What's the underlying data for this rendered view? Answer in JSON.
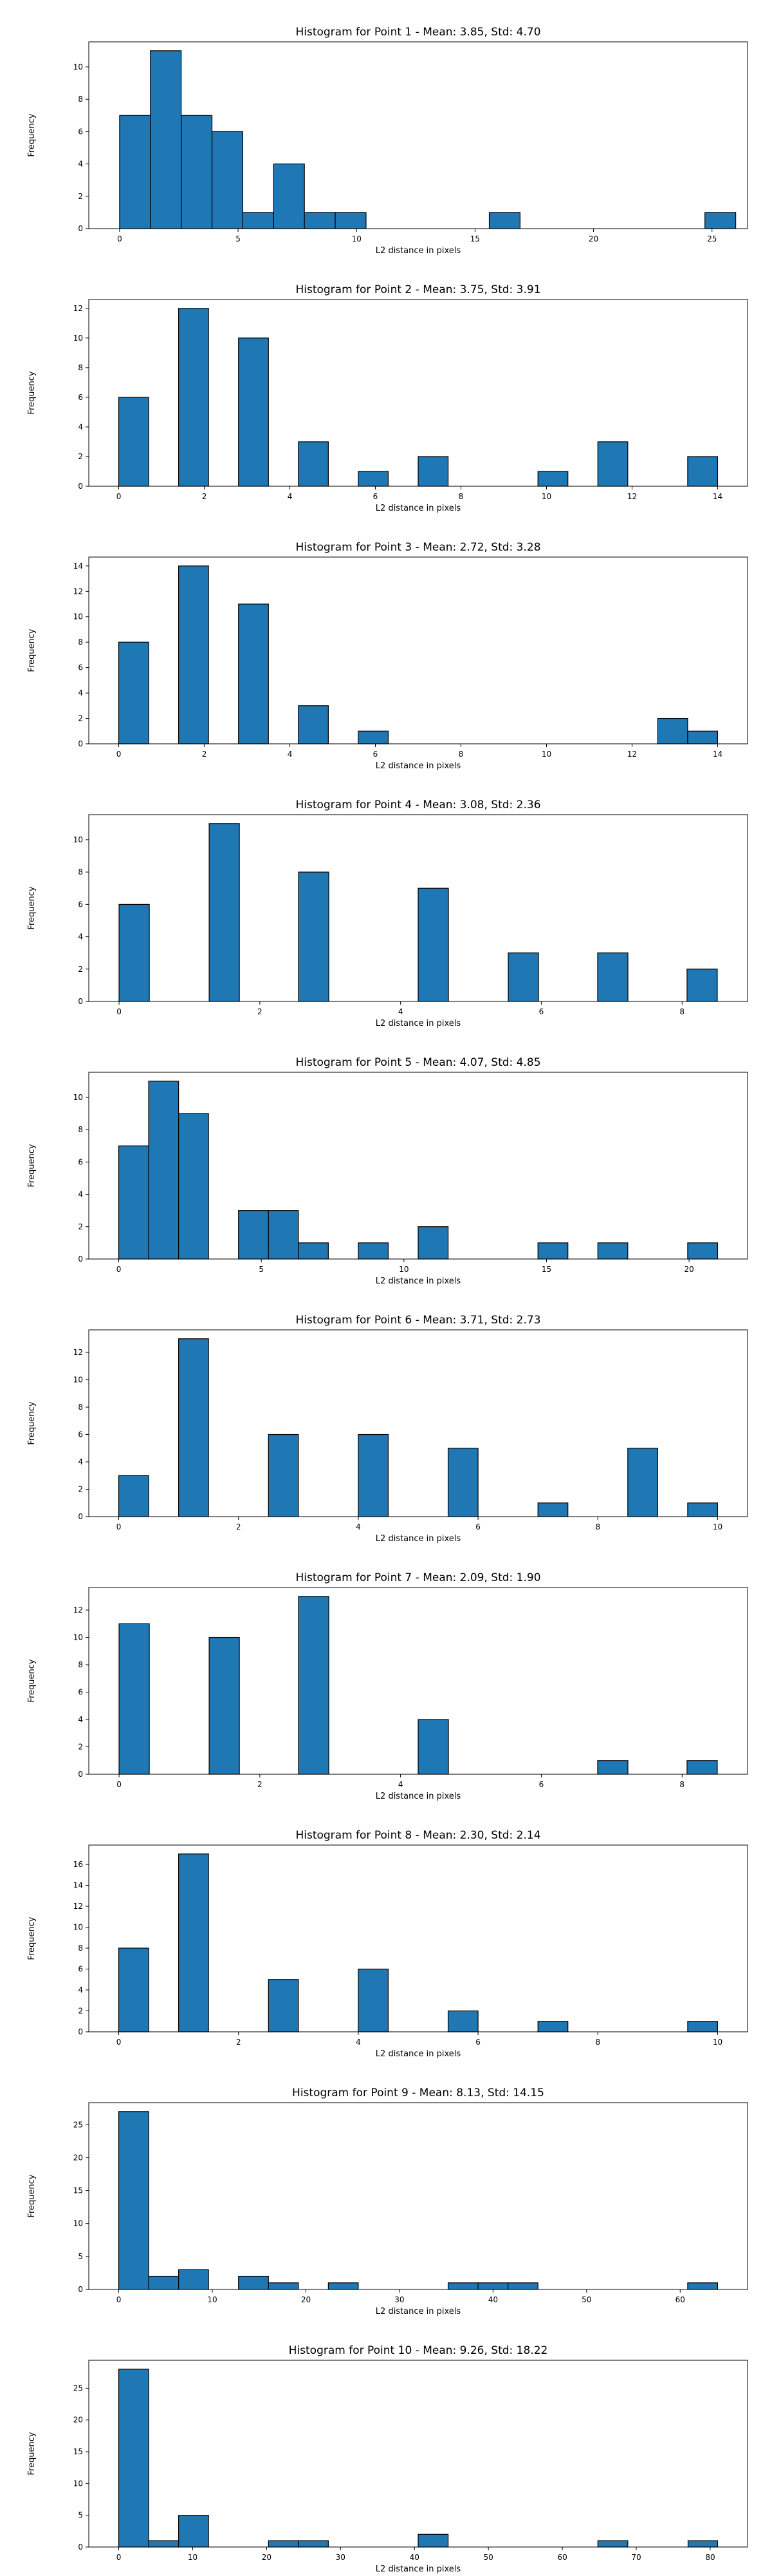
{
  "figure": {
    "bar_color": "#1f77b4",
    "edge_color": "#000000",
    "background": "#ffffff"
  },
  "chart_data": [
    {
      "type": "bar",
      "title": "Histogram for Point 1 - Mean: 3.85, Std: 4.70",
      "xlabel": "L2 distance in pixels",
      "ylabel": "Frequency",
      "xlim": [
        -1.3,
        26.5
      ],
      "ylim": [
        0,
        11.55
      ],
      "xticks": [
        0,
        5,
        10,
        15,
        20,
        25
      ],
      "yticks": [
        0,
        2,
        4,
        6,
        8,
        10
      ],
      "bins": [
        {
          "x0": 0.0,
          "x1": 1.3,
          "count": 7
        },
        {
          "x0": 1.3,
          "x1": 2.6,
          "count": 11
        },
        {
          "x0": 2.6,
          "x1": 3.9,
          "count": 7
        },
        {
          "x0": 3.9,
          "x1": 5.2,
          "count": 6
        },
        {
          "x0": 5.2,
          "x1": 6.5,
          "count": 1
        },
        {
          "x0": 6.5,
          "x1": 7.8,
          "count": 4
        },
        {
          "x0": 7.8,
          "x1": 9.1,
          "count": 1
        },
        {
          "x0": 9.1,
          "x1": 10.4,
          "count": 1
        },
        {
          "x0": 15.6,
          "x1": 16.9,
          "count": 1
        },
        {
          "x0": 24.7,
          "x1": 26.0,
          "count": 1
        }
      ]
    },
    {
      "type": "bar",
      "title": "Histogram for Point 2 - Mean: 3.75, Std: 3.91",
      "xlabel": "L2 distance in pixels",
      "ylabel": "Frequency",
      "xlim": [
        -0.7,
        14.7
      ],
      "ylim": [
        0,
        12.6
      ],
      "xticks": [
        0,
        2,
        4,
        6,
        8,
        10,
        12,
        14
      ],
      "yticks": [
        0,
        2,
        4,
        6,
        8,
        10,
        12
      ],
      "bins": [
        {
          "x0": 0.0,
          "x1": 0.7,
          "count": 6
        },
        {
          "x0": 1.4,
          "x1": 2.1,
          "count": 12
        },
        {
          "x0": 2.8,
          "x1": 3.5,
          "count": 10
        },
        {
          "x0": 4.2,
          "x1": 4.9,
          "count": 3
        },
        {
          "x0": 5.6,
          "x1": 6.3,
          "count": 1
        },
        {
          "x0": 7.0,
          "x1": 7.7,
          "count": 2
        },
        {
          "x0": 9.8,
          "x1": 10.5,
          "count": 1
        },
        {
          "x0": 11.2,
          "x1": 11.9,
          "count": 3
        },
        {
          "x0": 13.3,
          "x1": 14.0,
          "count": 2
        }
      ]
    },
    {
      "type": "bar",
      "title": "Histogram for Point 3 - Mean: 2.72, Std: 3.28",
      "xlabel": "L2 distance in pixels",
      "ylabel": "Frequency",
      "xlim": [
        -0.7,
        14.7
      ],
      "ylim": [
        0,
        14.7
      ],
      "xticks": [
        0,
        2,
        4,
        6,
        8,
        10,
        12,
        14
      ],
      "yticks": [
        0,
        2,
        4,
        6,
        8,
        10,
        12,
        14
      ],
      "bins": [
        {
          "x0": 0.0,
          "x1": 0.7,
          "count": 8
        },
        {
          "x0": 1.4,
          "x1": 2.1,
          "count": 14
        },
        {
          "x0": 2.8,
          "x1": 3.5,
          "count": 11
        },
        {
          "x0": 4.2,
          "x1": 4.9,
          "count": 3
        },
        {
          "x0": 5.6,
          "x1": 6.3,
          "count": 1
        },
        {
          "x0": 12.6,
          "x1": 13.3,
          "count": 2
        },
        {
          "x0": 13.3,
          "x1": 14.0,
          "count": 1
        }
      ]
    },
    {
      "type": "bar",
      "title": "Histogram for Point 4 - Mean: 3.08, Std: 2.36",
      "xlabel": "L2 distance in pixels",
      "ylabel": "Frequency",
      "xlim": [
        -0.43,
        8.93
      ],
      "ylim": [
        0,
        11.55
      ],
      "xticks": [
        0,
        2,
        4,
        6,
        8
      ],
      "yticks": [
        0,
        2,
        4,
        6,
        8,
        10
      ],
      "bins": [
        {
          "x0": 0.0,
          "x1": 0.43,
          "count": 6
        },
        {
          "x0": 1.28,
          "x1": 1.71,
          "count": 11
        },
        {
          "x0": 2.55,
          "x1": 2.98,
          "count": 8
        },
        {
          "x0": 4.25,
          "x1": 4.68,
          "count": 7
        },
        {
          "x0": 5.53,
          "x1": 5.96,
          "count": 3
        },
        {
          "x0": 6.8,
          "x1": 7.23,
          "count": 3
        },
        {
          "x0": 8.07,
          "x1": 8.5,
          "count": 2
        }
      ]
    },
    {
      "type": "bar",
      "title": "Histogram for Point 5 - Mean: 4.07, Std: 4.85",
      "xlabel": "L2 distance in pixels",
      "ylabel": "Frequency",
      "xlim": [
        -1.05,
        22.05
      ],
      "ylim": [
        0,
        11.55
      ],
      "xticks": [
        0,
        5,
        10,
        15,
        20
      ],
      "yticks": [
        0,
        2,
        4,
        6,
        8,
        10
      ],
      "bins": [
        {
          "x0": 0.0,
          "x1": 1.05,
          "count": 7
        },
        {
          "x0": 1.05,
          "x1": 2.1,
          "count": 11
        },
        {
          "x0": 2.1,
          "x1": 3.15,
          "count": 9
        },
        {
          "x0": 4.2,
          "x1": 5.25,
          "count": 3
        },
        {
          "x0": 5.25,
          "x1": 6.3,
          "count": 3
        },
        {
          "x0": 6.3,
          "x1": 7.35,
          "count": 1
        },
        {
          "x0": 8.4,
          "x1": 9.45,
          "count": 1
        },
        {
          "x0": 10.5,
          "x1": 11.55,
          "count": 2
        },
        {
          "x0": 14.7,
          "x1": 15.75,
          "count": 1
        },
        {
          "x0": 16.8,
          "x1": 17.85,
          "count": 1
        },
        {
          "x0": 19.95,
          "x1": 21.0,
          "count": 1
        }
      ]
    },
    {
      "type": "bar",
      "title": "Histogram for Point 6 - Mean: 3.71, Std: 2.73",
      "xlabel": "L2 distance in pixels",
      "ylabel": "Frequency",
      "xlim": [
        -0.5,
        10.5
      ],
      "ylim": [
        0,
        13.65
      ],
      "xticks": [
        0,
        2,
        4,
        6,
        8,
        10
      ],
      "yticks": [
        0,
        2,
        4,
        6,
        8,
        10,
        12
      ],
      "bins": [
        {
          "x0": 0.0,
          "x1": 0.5,
          "count": 3
        },
        {
          "x0": 1.0,
          "x1": 1.5,
          "count": 13
        },
        {
          "x0": 2.5,
          "x1": 3.0,
          "count": 6
        },
        {
          "x0": 4.0,
          "x1": 4.5,
          "count": 6
        },
        {
          "x0": 5.5,
          "x1": 6.0,
          "count": 5
        },
        {
          "x0": 7.0,
          "x1": 7.5,
          "count": 1
        },
        {
          "x0": 8.5,
          "x1": 9.0,
          "count": 5
        },
        {
          "x0": 9.5,
          "x1": 10.0,
          "count": 1
        }
      ]
    },
    {
      "type": "bar",
      "title": "Histogram for Point 7 - Mean: 2.09, Std: 1.90",
      "xlabel": "L2 distance in pixels",
      "ylabel": "Frequency",
      "xlim": [
        -0.43,
        8.93
      ],
      "ylim": [
        0,
        13.65
      ],
      "xticks": [
        0,
        2,
        4,
        6,
        8
      ],
      "yticks": [
        0,
        2,
        4,
        6,
        8,
        10,
        12
      ],
      "bins": [
        {
          "x0": 0.0,
          "x1": 0.43,
          "count": 11
        },
        {
          "x0": 1.28,
          "x1": 1.71,
          "count": 10
        },
        {
          "x0": 2.55,
          "x1": 2.98,
          "count": 13
        },
        {
          "x0": 4.25,
          "x1": 4.68,
          "count": 4
        },
        {
          "x0": 6.8,
          "x1": 7.23,
          "count": 1
        },
        {
          "x0": 8.07,
          "x1": 8.5,
          "count": 1
        }
      ]
    },
    {
      "type": "bar",
      "title": "Histogram for Point 8 - Mean: 2.30, Std: 2.14",
      "xlabel": "L2 distance in pixels",
      "ylabel": "Frequency",
      "xlim": [
        -0.5,
        10.5
      ],
      "ylim": [
        0,
        17.85
      ],
      "xticks": [
        0,
        2,
        4,
        6,
        8,
        10
      ],
      "yticks": [
        0,
        2,
        4,
        6,
        8,
        10,
        12,
        14,
        16
      ],
      "bins": [
        {
          "x0": 0.0,
          "x1": 0.5,
          "count": 8
        },
        {
          "x0": 1.0,
          "x1": 1.5,
          "count": 17
        },
        {
          "x0": 2.5,
          "x1": 3.0,
          "count": 5
        },
        {
          "x0": 4.0,
          "x1": 4.5,
          "count": 6
        },
        {
          "x0": 5.5,
          "x1": 6.0,
          "count": 2
        },
        {
          "x0": 7.0,
          "x1": 7.5,
          "count": 1
        },
        {
          "x0": 9.5,
          "x1": 10.0,
          "count": 1
        }
      ]
    },
    {
      "type": "bar",
      "title": "Histogram for Point 9 - Mean: 8.13, Std: 14.15",
      "xlabel": "L2 distance in pixels",
      "ylabel": "Frequency",
      "xlim": [
        -3.2,
        67.2
      ],
      "ylim": [
        0,
        28.35
      ],
      "xticks": [
        0,
        10,
        20,
        30,
        40,
        50,
        60
      ],
      "yticks": [
        0,
        5,
        10,
        15,
        20,
        25
      ],
      "bins": [
        {
          "x0": 0.0,
          "x1": 3.2,
          "count": 27
        },
        {
          "x0": 3.2,
          "x1": 6.4,
          "count": 2
        },
        {
          "x0": 6.4,
          "x1": 9.6,
          "count": 3
        },
        {
          "x0": 12.8,
          "x1": 16.0,
          "count": 2
        },
        {
          "x0": 16.0,
          "x1": 19.2,
          "count": 1
        },
        {
          "x0": 22.4,
          "x1": 25.6,
          "count": 1
        },
        {
          "x0": 35.2,
          "x1": 38.4,
          "count": 1
        },
        {
          "x0": 38.4,
          "x1": 41.6,
          "count": 1
        },
        {
          "x0": 41.6,
          "x1": 44.8,
          "count": 1
        },
        {
          "x0": 60.8,
          "x1": 64.0,
          "count": 1
        }
      ]
    },
    {
      "type": "bar",
      "title": "Histogram for Point 10 - Mean: 9.26, Std: 18.22",
      "xlabel": "L2 distance in pixels",
      "ylabel": "Frequency",
      "xlim": [
        -4.05,
        85.05
      ],
      "ylim": [
        0,
        29.4
      ],
      "xticks": [
        0,
        10,
        20,
        30,
        40,
        50,
        60,
        70,
        80
      ],
      "yticks": [
        0,
        5,
        10,
        15,
        20,
        25
      ],
      "bins": [
        {
          "x0": 0.0,
          "x1": 4.05,
          "count": 28
        },
        {
          "x0": 4.05,
          "x1": 8.1,
          "count": 1
        },
        {
          "x0": 8.1,
          "x1": 12.15,
          "count": 5
        },
        {
          "x0": 20.25,
          "x1": 24.3,
          "count": 1
        },
        {
          "x0": 24.3,
          "x1": 28.35,
          "count": 1
        },
        {
          "x0": 40.5,
          "x1": 44.55,
          "count": 2
        },
        {
          "x0": 64.8,
          "x1": 68.85,
          "count": 1
        },
        {
          "x0": 77.0,
          "x1": 81.0,
          "count": 1
        }
      ]
    }
  ]
}
